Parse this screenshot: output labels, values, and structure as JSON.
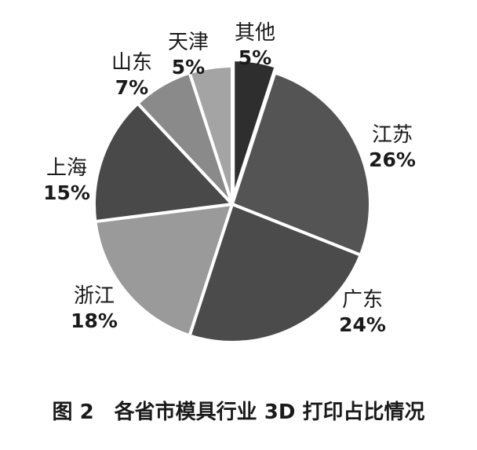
{
  "chart_data": {
    "type": "pie",
    "categories": [
      "其他",
      "江苏",
      "广东",
      "浙江",
      "上海",
      "山东",
      "天津"
    ],
    "values": [
      5,
      26,
      24,
      18,
      15,
      7,
      5
    ],
    "labels": [
      "5%",
      "26%",
      "24%",
      "18%",
      "15%",
      "7%",
      "5%"
    ],
    "colors": [
      "#2e2e2e",
      "#545454",
      "#4b4b4b",
      "#9a9a9a",
      "#494949",
      "#8a8a8a",
      "#a4a4a4"
    ],
    "start_angle_deg": 0,
    "direction": "clockwise",
    "legend": "none"
  },
  "caption": "图 2　各省市模具行业 3D 打印占比情况"
}
